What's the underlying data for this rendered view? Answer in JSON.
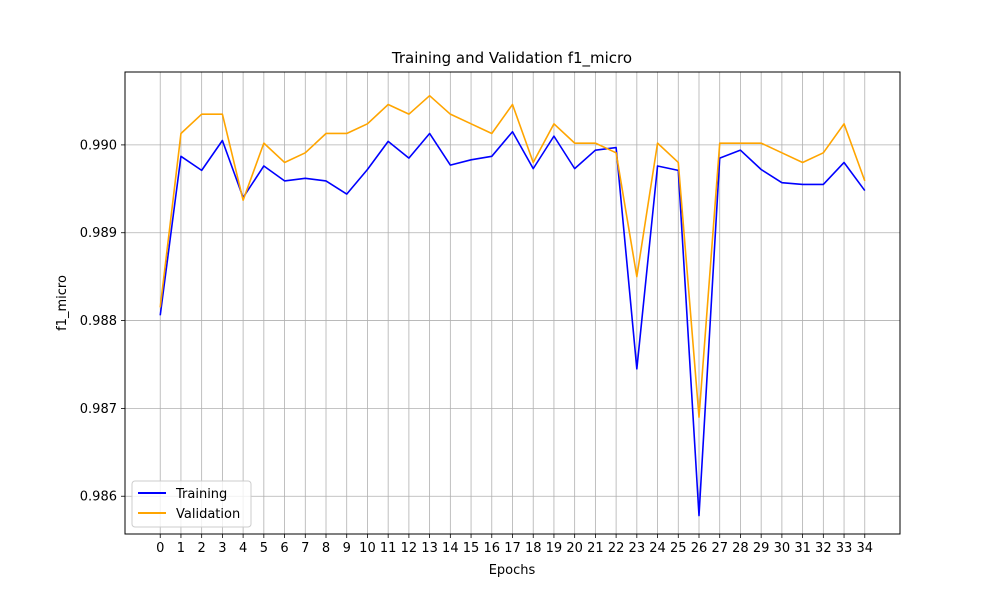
{
  "chart_data": {
    "type": "line",
    "title": "Training and Validation f1_micro",
    "xlabel": "Epochs",
    "ylabel": "f1_micro",
    "x": [
      0,
      1,
      2,
      3,
      4,
      5,
      6,
      7,
      8,
      9,
      10,
      11,
      12,
      13,
      14,
      15,
      16,
      17,
      18,
      19,
      20,
      21,
      22,
      23,
      24,
      25,
      26,
      27,
      28,
      29,
      30,
      31,
      32,
      33,
      34
    ],
    "x_ticks": [
      "0",
      "1",
      "2",
      "3",
      "4",
      "5",
      "6",
      "7",
      "8",
      "9",
      "10",
      "11",
      "12",
      "13",
      "14",
      "15",
      "16",
      "17",
      "18",
      "19",
      "20",
      "21",
      "22",
      "23",
      "24",
      "25",
      "26",
      "27",
      "28",
      "29",
      "30",
      "31",
      "32",
      "33",
      "34"
    ],
    "y_ticks": [
      "0.986",
      "0.987",
      "0.988",
      "0.989",
      "0.990"
    ],
    "y_tick_values": [
      0.986,
      0.987,
      0.988,
      0.989,
      0.99
    ],
    "xlim": [
      -1.7,
      35.7
    ],
    "ylim": [
      0.98557,
      0.99083
    ],
    "grid": true,
    "legend_position": "lower-left",
    "series": [
      {
        "name": "Training",
        "color": "#0000ff",
        "values": [
          0.98806,
          0.98987,
          0.98971,
          0.99005,
          0.9894,
          0.98976,
          0.98959,
          0.98962,
          0.98959,
          0.98944,
          0.98972,
          0.99004,
          0.98985,
          0.99013,
          0.98977,
          0.98983,
          0.98987,
          0.99015,
          0.98973,
          0.9901,
          0.98973,
          0.98994,
          0.98997,
          0.98745,
          0.98976,
          0.98971,
          0.98578,
          0.98985,
          0.98994,
          0.98972,
          0.98957,
          0.98955,
          0.98955,
          0.9898,
          0.98948
        ]
      },
      {
        "name": "Validation",
        "color": "#ffa500",
        "values": [
          0.98815,
          0.99013,
          0.99035,
          0.99035,
          0.98937,
          0.99002,
          0.9898,
          0.98991,
          0.99013,
          0.99013,
          0.99024,
          0.99046,
          0.99035,
          0.99056,
          0.99035,
          0.99024,
          0.99013,
          0.99046,
          0.9898,
          0.99024,
          0.99002,
          0.99002,
          0.98991,
          0.9885,
          0.99002,
          0.9898,
          0.9869,
          0.99002,
          0.99002,
          0.99002,
          0.98991,
          0.9898,
          0.98991,
          0.99024,
          0.98959
        ]
      }
    ]
  }
}
